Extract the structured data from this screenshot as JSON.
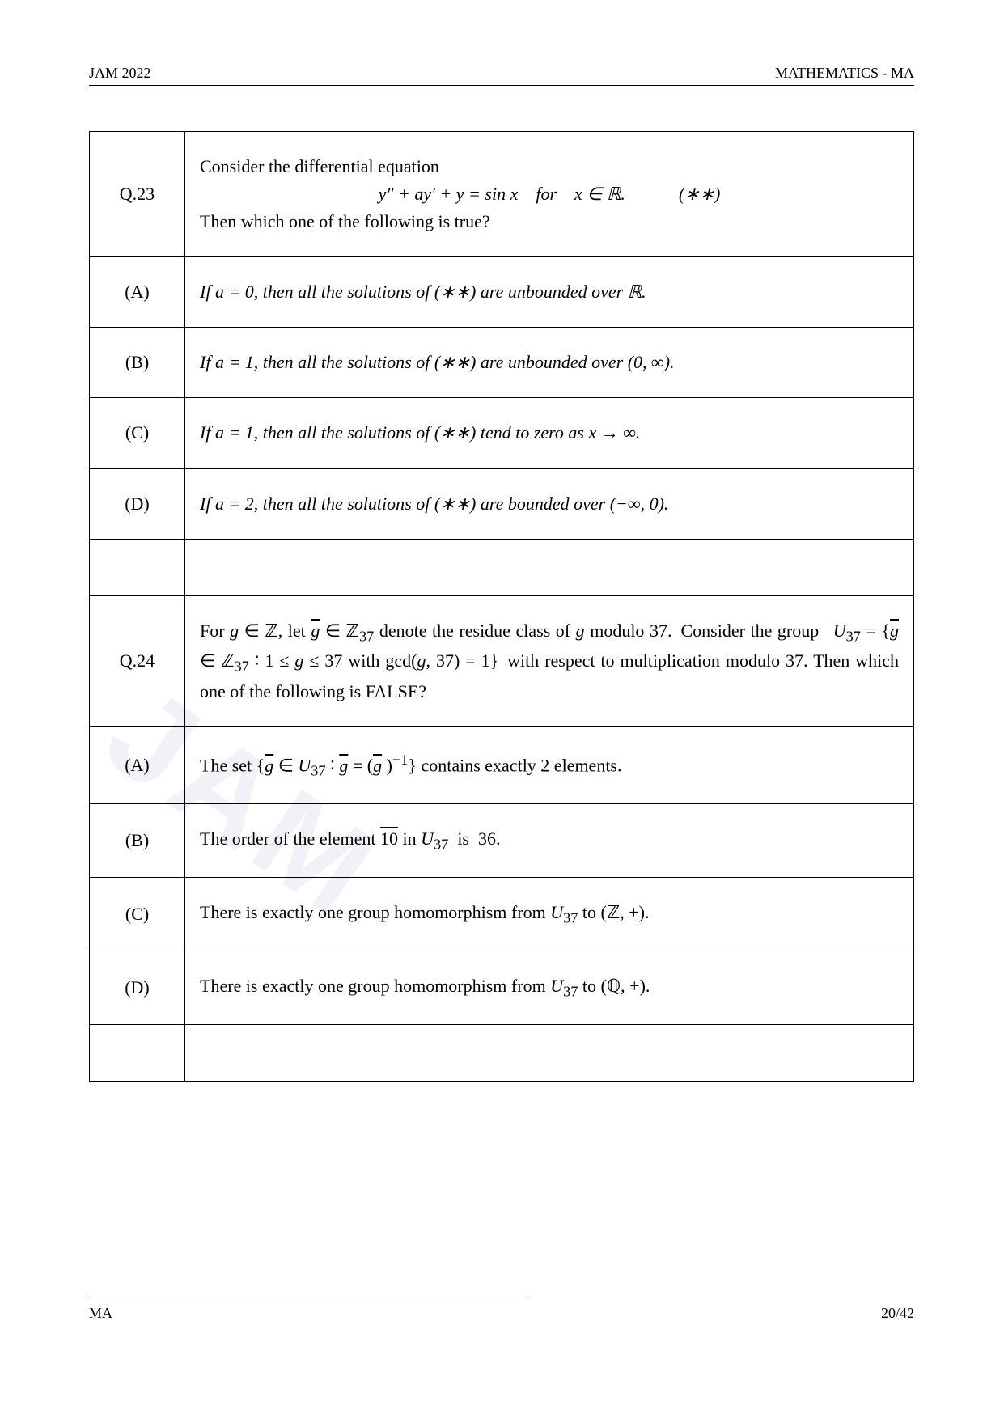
{
  "header": {
    "left": "JAM 2022",
    "right": "MATHEMATICS - MA"
  },
  "footer": {
    "left": "MA",
    "right": "20/42"
  },
  "questions": [
    {
      "label": "Q.23",
      "stem_intro": "Consider the differential equation",
      "equation": "y″ + ay′ + y = sin x for x ∈ ℝ.   (∗∗)",
      "stem_outro": "Then which one of the following is true?",
      "options": [
        {
          "label": "(A)",
          "text": "If a = 0, then all the solutions of (∗∗) are unbounded over ℝ."
        },
        {
          "label": "(B)",
          "text": "If a = 1, then all the solutions of (∗∗) are unbounded over (0, ∞)."
        },
        {
          "label": "(C)",
          "text": "If a = 1, then all the solutions of (∗∗) tend to zero as x → ∞."
        },
        {
          "label": "(D)",
          "text": "If a = 2, then all the solutions of (∗∗) are bounded over (−∞, 0)."
        }
      ]
    },
    {
      "label": "Q.24",
      "stem_html": "For <span class='ital'>g</span> ∈ ℤ, let <span class='over ital'>g</span> ∈ ℤ<sub>37</sub> denote the residue class of <span class='ital'>g</span> modulo 37. Consider the group  <span class='ital'>U</span><sub>37</sub> = {<span class='over ital'>g</span> ∈ ℤ<sub>37</sub> ∶ 1 ≤ <span class='ital'>g</span> ≤ 37 with gcd(<span class='ital'>g</span>, 37) = 1} with respect to multiplication modulo 37. Then which one of the following is FALSE?",
      "options": [
        {
          "label": "(A)",
          "html": "The set {<span class='over ital'>g</span> ∈ <span class='ital'>U</span><sub>37</sub> ∶ <span class='over ital'>g</span> = (<span class='over ital'>g</span> )<sup>−1</sup>} contains exactly 2 elements."
        },
        {
          "label": "(B)",
          "html": "The order of the element <span class='over'>10</span> in <span class='ital'>U</span><sub>37</sub> is 36."
        },
        {
          "label": "(C)",
          "html": "There is exactly one group homomorphism from <span class='ital'>U</span><sub>37</sub> to (ℤ, +)."
        },
        {
          "label": "(D)",
          "html": "There is exactly one group homomorphism from <span class='ital'>U</span><sub>37</sub> to (ℚ, +)."
        }
      ]
    }
  ],
  "watermark": {
    "text": "JAM",
    "color": "rgba(140,150,200,0.12)"
  }
}
